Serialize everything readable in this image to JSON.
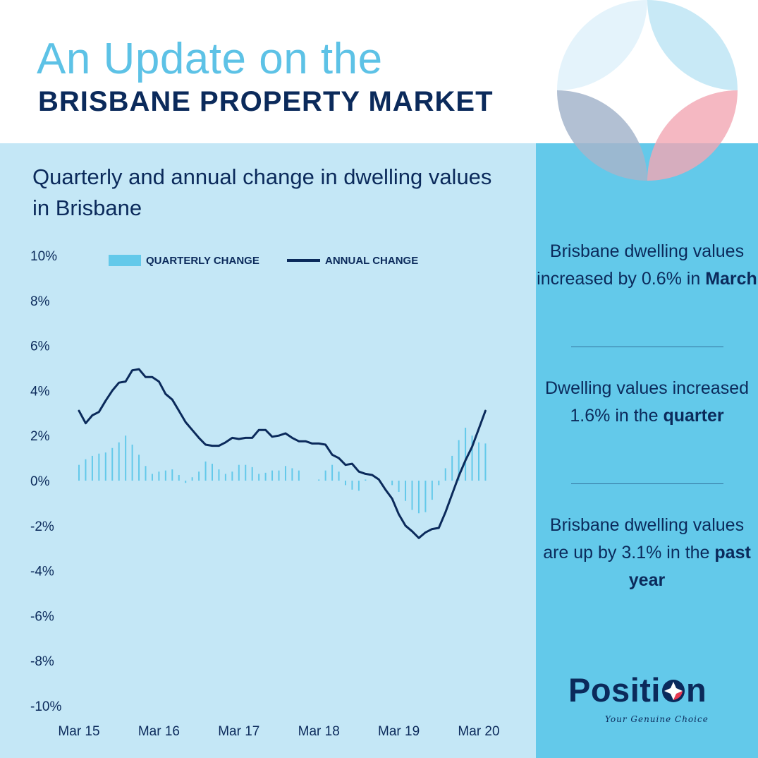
{
  "header": {
    "title_line1": "An Update on the",
    "title_line2": "BRISBANE PROPERTY MARKET"
  },
  "colors": {
    "navy": "#0b2a5b",
    "light_blue": "#5dc2e6",
    "panel_light": "#c4e7f6",
    "panel_mid": "#63c9ea",
    "bar": "#63c9ea",
    "red_accent": "#e8384f"
  },
  "stats": [
    {
      "before": "Brisbane dwelling values increased by 0.6% in ",
      "bold": "March",
      "after": ""
    },
    {
      "before": "Dwelling values increased 1.6% in the ",
      "bold": "quarter",
      "after": ""
    },
    {
      "before": "Brisbane dwelling values are up by 3.1% in the ",
      "bold": "past year",
      "after": ""
    }
  ],
  "logo": {
    "word_start": "Positi",
    "word_end": "n",
    "tagline": "Your Genuine Choice",
    "icon": "compass-diamond-icon"
  },
  "chart_data": {
    "type": "bar+line",
    "title": "Quarterly and annual change in dwelling values in Brisbane",
    "legend": [
      {
        "name": "QUARTERLY CHANGE",
        "mark": "bar"
      },
      {
        "name": "ANNUAL CHANGE",
        "mark": "line"
      }
    ],
    "legend_position": "top-left",
    "grid": false,
    "ylim": [
      -10,
      10
    ],
    "y_ticks": [
      "10%",
      "8%",
      "6%",
      "4%",
      "2%",
      "0%",
      "-2%",
      "-4%",
      "-6%",
      "-8%",
      "-10%"
    ],
    "x_ticks": [
      {
        "label": "Mar 15",
        "index": 0
      },
      {
        "label": "Mar 16",
        "index": 12
      },
      {
        "label": "Mar 17",
        "index": 24
      },
      {
        "label": "Mar 18",
        "index": 36
      },
      {
        "label": "Mar 19",
        "index": 48
      },
      {
        "label": "Mar 20",
        "index": 60
      }
    ],
    "series": [
      {
        "name": "QUARTERLY CHANGE",
        "type": "bar",
        "values": [
          0.7,
          0.95,
          1.1,
          1.2,
          1.25,
          1.45,
          1.7,
          2.0,
          1.6,
          1.15,
          0.65,
          0.3,
          0.4,
          0.45,
          0.5,
          0.25,
          -0.1,
          0.15,
          0.4,
          0.85,
          0.75,
          0.5,
          0.3,
          0.4,
          0.7,
          0.7,
          0.6,
          0.3,
          0.35,
          0.45,
          0.45,
          0.65,
          0.55,
          0.45,
          0.0,
          0.0,
          0.05,
          0.45,
          0.7,
          0.4,
          -0.2,
          -0.4,
          -0.45,
          0.05,
          0.0,
          0.0,
          0.0,
          -0.2,
          -0.5,
          -0.9,
          -1.3,
          -1.45,
          -1.4,
          -0.85,
          -0.2,
          0.55,
          1.1,
          1.8,
          2.35,
          2.0,
          1.7,
          1.65
        ]
      },
      {
        "name": "ANNUAL CHANGE",
        "type": "line",
        "values": [
          3.1,
          2.55,
          2.9,
          3.05,
          3.55,
          4.0,
          4.35,
          4.4,
          4.9,
          4.95,
          4.6,
          4.6,
          4.4,
          3.85,
          3.6,
          3.1,
          2.6,
          2.25,
          1.9,
          1.6,
          1.55,
          1.55,
          1.7,
          1.9,
          1.85,
          1.9,
          1.9,
          2.25,
          2.25,
          1.95,
          2.0,
          2.1,
          1.9,
          1.75,
          1.75,
          1.65,
          1.65,
          1.6,
          1.15,
          1.0,
          0.7,
          0.75,
          0.4,
          0.3,
          0.25,
          0.05,
          -0.4,
          -0.8,
          -1.5,
          -2.0,
          -2.25,
          -2.55,
          -2.3,
          -2.15,
          -2.1,
          -1.4,
          -0.6,
          0.2,
          0.9,
          1.5,
          2.3,
          3.1
        ]
      }
    ]
  }
}
